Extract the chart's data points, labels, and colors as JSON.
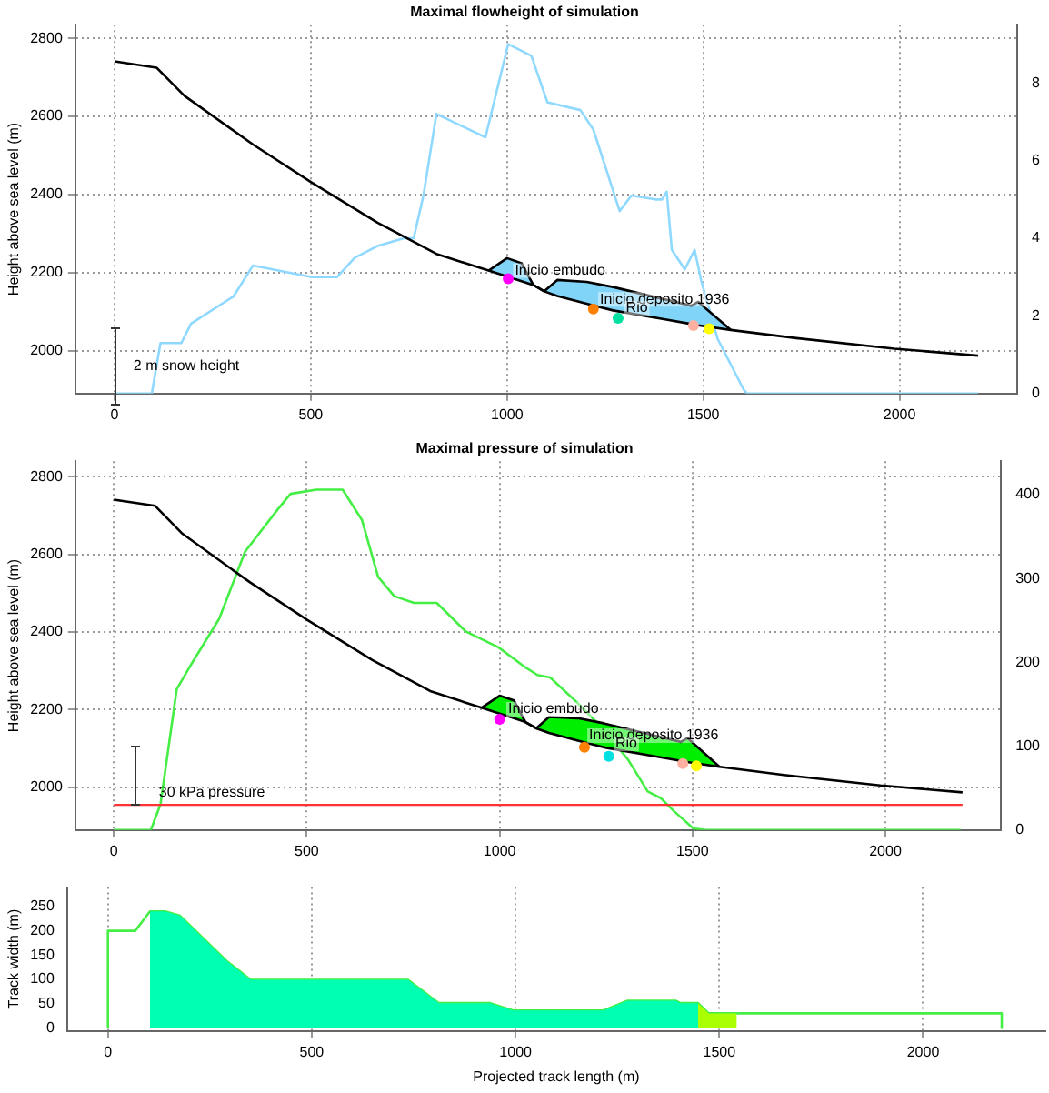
{
  "chart_data": [
    {
      "type": "line",
      "title": "Maximal flowheight of simulation",
      "ylabel": "Height above sea level (m)",
      "xlim": [
        -100,
        2300
      ],
      "xticks": [
        0,
        500,
        1000,
        1500,
        2000
      ],
      "ylim": [
        1890,
        2835
      ],
      "yticks": [
        2000,
        2200,
        2400,
        2600,
        2800
      ],
      "y2lim": [
        0,
        9.5
      ],
      "y2ticks": [
        0,
        2,
        4,
        6,
        8
      ],
      "grid": true,
      "legend": false,
      "x": [
        0,
        107,
        178,
        353,
        500,
        670,
        820,
        953,
        1000,
        1037,
        1067,
        1095,
        1128,
        1203,
        1270,
        1403,
        1470,
        1487,
        1570,
        1737,
        1987,
        2200
      ],
      "series": [
        {
          "color": "#000000",
          "values": [
            2741,
            2725,
            2653,
            2528,
            2432,
            2328,
            2248,
            2205,
            2190,
            2178,
            2168,
            2152,
            2140,
            2120,
            2103,
            2080,
            2068,
            2065,
            2053,
            2032,
            2005,
            1987
          ]
        },
        {
          "type": "area",
          "color": "#80d4f8",
          "values": [
            null,
            null,
            null,
            null,
            null,
            null,
            null,
            2205,
            2237,
            2224,
            2168,
            2152,
            2181,
            2176,
            2163,
            2131,
            2115,
            2125,
            2053,
            null,
            null,
            null
          ]
        },
        {
          "type": "line",
          "axis": "y2",
          "color": "#8fd8ff",
          "x": [
            0,
            95,
            117,
            170,
            195,
            303,
            353,
            403,
            503,
            567,
            612,
            670,
            737,
            762,
            787,
            820,
            945,
            1003,
            1062,
            1103,
            1187,
            1220,
            1287,
            1317,
            1378,
            1395,
            1407,
            1420,
            1453,
            1478,
            1495,
            1537,
            1603,
            1612,
            2200
          ],
          "values": [
            0,
            0,
            1.3,
            1.3,
            1.8,
            2.5,
            3.3,
            3.2,
            3.0,
            3.0,
            3.5,
            3.8,
            4.0,
            4.0,
            5.1,
            7.2,
            6.6,
            9.0,
            8.7,
            7.5,
            7.3,
            6.8,
            4.7,
            5.1,
            5.0,
            5.0,
            5.2,
            3.7,
            3.2,
            3.7,
            2.9,
            1.4,
            0.1,
            0,
            0
          ]
        },
        {
          "type": "scatter",
          "marker": "circle",
          "x": [
            1003,
            1220,
            1283,
            1475,
            1515
          ],
          "values": [
            2184,
            2107,
            2083,
            2064,
            2056
          ],
          "colors": [
            "#ff00ff",
            "#ff7f00",
            "#00e0a0",
            "#ffb0a0",
            "#ffff00"
          ]
        }
      ],
      "annotations": [
        {
          "text": "Inicio embudo",
          "x": 1020,
          "y": 2205
        },
        {
          "text": "Inicio deposito 1936",
          "x": 1237,
          "y": 2131
        },
        {
          "text": "Rio",
          "x": 1303,
          "y": 2109
        },
        "2 m snow height"
      ]
    },
    {
      "type": "line",
      "title": "Maximal pressure of simulation",
      "ylabel": "Height above sea level (m)",
      "xlim": [
        -100,
        2300
      ],
      "xticks": [
        0,
        500,
        1000,
        1500,
        2000
      ],
      "ylim": [
        1890,
        2840
      ],
      "yticks": [
        2000,
        2200,
        2400,
        2600,
        2800
      ],
      "y2lim": [
        0,
        440
      ],
      "y2ticks": [
        0,
        100,
        200,
        300,
        400
      ],
      "grid": true,
      "legend": false,
      "x": [
        0,
        107,
        178,
        353,
        500,
        670,
        820,
        953,
        1000,
        1037,
        1067,
        1095,
        1128,
        1203,
        1270,
        1403,
        1470,
        1487,
        1570,
        1737,
        1987,
        2200
      ],
      "series": [
        {
          "color": "#000000",
          "values": [
            2741,
            2725,
            2653,
            2528,
            2432,
            2328,
            2248,
            2205,
            2190,
            2178,
            2168,
            2152,
            2140,
            2120,
            2103,
            2080,
            2068,
            2065,
            2053,
            2032,
            2005,
            1987
          ]
        },
        {
          "type": "area",
          "color": "#00ee00",
          "values": [
            null,
            null,
            null,
            null,
            null,
            null,
            null,
            2205,
            2236,
            2224,
            2168,
            2152,
            2181,
            2178,
            2165,
            2133,
            2117,
            2127,
            2053,
            null,
            null,
            null
          ]
        },
        {
          "type": "line",
          "axis": "y2",
          "color": "#44ee44",
          "x": [
            0,
            96,
            121,
            163,
            197,
            273,
            340,
            424,
            458,
            525,
            593,
            643,
            685,
            727,
            778,
            837,
            912,
            997,
            1064,
            1098,
            1131,
            1199,
            1266,
            1333,
            1384,
            1418,
            1451,
            1502,
            1535,
            2195
          ],
          "values": [
            0,
            0,
            31,
            168,
            195,
            252,
            332,
            382,
            401,
            406,
            406,
            370,
            302,
            279,
            271,
            271,
            237,
            218,
            195,
            185,
            182,
            153,
            122,
            84,
            46,
            38,
            23,
            2,
            0,
            0
          ]
        },
        {
          "type": "scatter",
          "marker": "circle",
          "x": [
            1000,
            1220,
            1283,
            1475,
            1510
          ],
          "values": [
            2175,
            2103,
            2080,
            2061,
            2055
          ],
          "colors": [
            "#ff00ff",
            "#ff7f00",
            "#00e0e0",
            "#ffb0a0",
            "#ffff00"
          ]
        }
      ],
      "ref_lines": [
        {
          "axis": "y2",
          "value": 30,
          "label": "30 kPa pressure",
          "color": "#ff3333"
        }
      ],
      "annotations": [
        {
          "text": "Inicio embudo",
          "x": 1022,
          "y": 2201
        },
        {
          "text": "Inicio deposito 1936",
          "x": 1232,
          "y": 2133
        },
        {
          "text": "Rio",
          "x": 1300,
          "y": 2112
        }
      ]
    },
    {
      "type": "area",
      "xlabel": "Projected track length (m)",
      "ylabel": "Track width (m)",
      "xlim": [
        -100,
        2300
      ],
      "xticks": [
        0,
        500,
        1000,
        1500,
        2000
      ],
      "ylim": [
        -6,
        290
      ],
      "yticks": [
        0,
        50,
        100,
        150,
        200,
        250
      ],
      "grid": "x",
      "legend": false,
      "series": [
        {
          "color": "#00ffb0",
          "x": [
            103,
            140,
            177,
            291,
            350,
            736,
            812,
            938,
            994,
            1216,
            1275,
            1393,
            1405,
            1448
          ],
          "values": [
            240,
            240,
            231,
            138,
            99,
            99,
            51,
            51,
            36,
            36,
            56,
            56,
            51,
            51
          ]
        },
        {
          "color": "#aaff00",
          "x": [
            1448,
            1474,
            1543
          ],
          "values": [
            51,
            30,
            30
          ]
        },
        {
          "type": "line",
          "color": "#44ee44",
          "x": [
            0,
            0,
            67,
            103,
            140,
            177,
            291,
            350,
            736,
            812,
            938,
            994,
            1216,
            1275,
            1393,
            1405,
            1448,
            1474,
            2193,
            2193
          ],
          "values": [
            0,
            200,
            200,
            240,
            240,
            231,
            138,
            99,
            99,
            51,
            51,
            36,
            36,
            56,
            56,
            51,
            51,
            30,
            30,
            0
          ]
        }
      ]
    }
  ]
}
